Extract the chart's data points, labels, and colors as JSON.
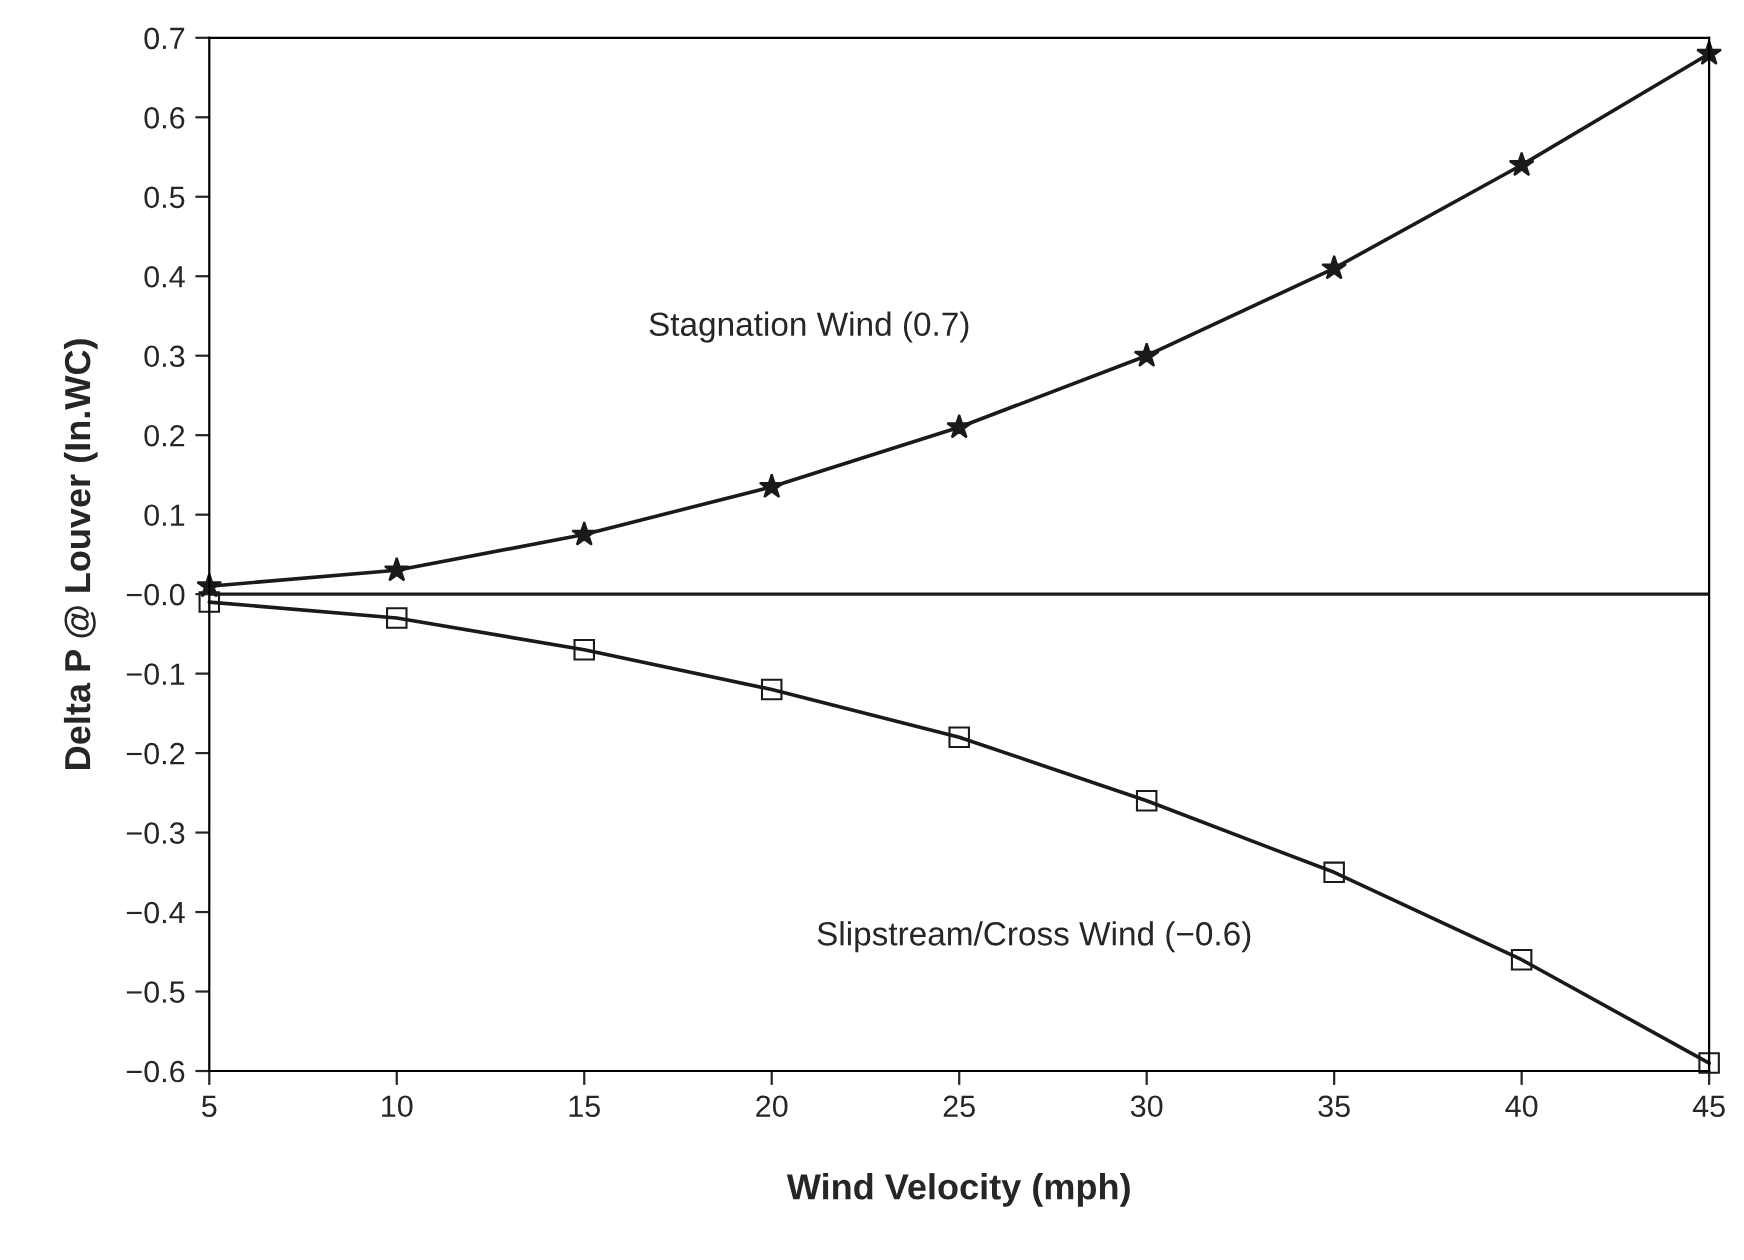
{
  "chart_data": {
    "type": "line",
    "xlabel": "Wind Velocity (mph)",
    "ylabel": "Delta P @ Louver (In.WC)",
    "x": [
      5,
      10,
      15,
      20,
      25,
      30,
      35,
      40,
      45
    ],
    "series": [
      {
        "name": "Stagnation Wind (0.7)",
        "color": "#1a1a1a",
        "marker": "star",
        "values": [
          0.01,
          0.03,
          0.075,
          0.135,
          0.21,
          0.3,
          0.41,
          0.54,
          0.68
        ]
      },
      {
        "name": "Slipstream/Cross Wind (−0.6)",
        "color": "#1a1a1a",
        "marker": "square",
        "values": [
          -0.01,
          -0.03,
          -0.07,
          -0.12,
          -0.18,
          -0.26,
          -0.35,
          -0.46,
          -0.59
        ]
      }
    ],
    "xlim": [
      5,
      45
    ],
    "xticks": [
      5,
      10,
      15,
      20,
      25,
      30,
      35,
      40,
      45
    ],
    "ylim": [
      -0.6,
      0.7
    ],
    "yticks": [
      {
        "value": -0.6,
        "label": "−0.6"
      },
      {
        "value": -0.5,
        "label": "−0.5"
      },
      {
        "value": -0.4,
        "label": "−0.4"
      },
      {
        "value": -0.3,
        "label": "−0.3"
      },
      {
        "value": -0.2,
        "label": "−0.2"
      },
      {
        "value": -0.1,
        "label": "−0.1"
      },
      {
        "value": 0,
        "label": "−0.0"
      },
      0.1,
      0.2,
      0.3,
      0.4,
      0.5,
      0.6,
      0.7
    ],
    "ref_lines": [
      {
        "axis": "y",
        "value": 0,
        "color": "#1a1a1a"
      }
    ],
    "line_style": "solid",
    "grid": false,
    "legend": false
  }
}
